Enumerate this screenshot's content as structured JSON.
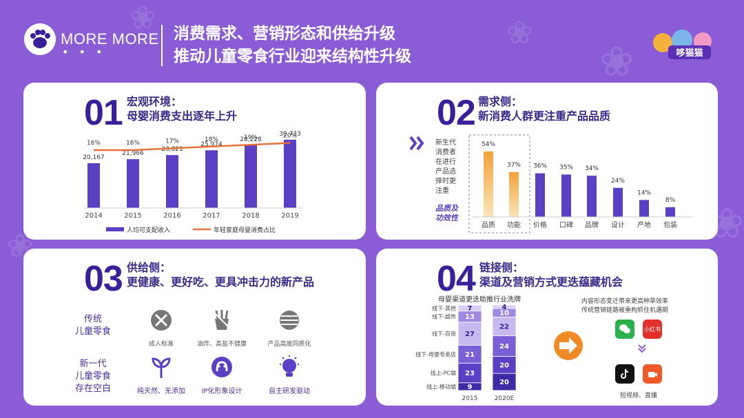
{
  "header": {
    "brand": "MORE MORE",
    "brand_dots": "• • •",
    "title_line1": "消费需求、营销形态和供给升级",
    "title_line2": "推动儿童零食行业迎来结构性升级",
    "mascot_text": "哆猫猫"
  },
  "card1": {
    "num": "01",
    "title_line1": "宏观环境：",
    "title_line2": "母婴消费支出逐年上升",
    "legend_bar": "人均可支配收入",
    "legend_line": "年轻家庭母婴消费占比"
  },
  "card2": {
    "num": "02",
    "title_line1": "需求侧：",
    "title_line2": "新消费人群更注重产品品质",
    "side_text": [
      "新生代",
      "消费者",
      "在进行",
      "产品选",
      "择时更",
      "注重"
    ],
    "side_emph": [
      "品质及",
      "功效性"
    ]
  },
  "card3": {
    "num": "03",
    "title_line1": "供给侧：",
    "title_line2": "更健康、更好吃、更具冲击力的新产品",
    "row1_label": [
      "传统",
      "儿童零食"
    ],
    "row2_label": [
      "新一代",
      "儿童零食",
      "存在空白"
    ],
    "row1_caps": [
      "成人标准",
      "油炸、高盐不健康",
      "产品高度同质化"
    ],
    "row2_caps": [
      "纯天然、无添加",
      "IP化形象设计",
      "自主研发驱动"
    ]
  },
  "card4": {
    "num": "04",
    "title_line1": "链接侧：",
    "title_line2": "渠道及营销方式更迭蕴藏机会",
    "right_line1": "内容形态变迁带来更高种草效率",
    "right_line2": "传统营销链路被重构抓住机遇期",
    "app_xhs": "小红书",
    "bottom_caption": "短视频、直播"
  },
  "colors": {
    "background": "#8a5cd6",
    "card": "#ffffff",
    "bar_purple": "#5b3fc4",
    "line_orange": "#e8703a",
    "highlight_orange": "#f2a23a",
    "dark_title": "#3a1f9a",
    "arrow_orange": "#f08a24"
  },
  "chart_data": [
    {
      "type": "bar",
      "name": "macro",
      "categories": [
        "2014",
        "2015",
        "2016",
        "2017",
        "2018",
        "2019"
      ],
      "series": [
        {
          "name": "人均可支配收入",
          "values": [
            20167,
            21966,
            23821,
            25974,
            28228,
            30733
          ],
          "labels": [
            "20,167",
            "21,966",
            "23,821",
            "25,974",
            "28,228",
            "30,733"
          ]
        },
        {
          "name": "年轻家庭母婴消费占比",
          "type": "line",
          "values": [
            16,
            16,
            17,
            18,
            19,
            20
          ],
          "labels": [
            "16%",
            "16%",
            "17%",
            "18%",
            "19%",
            "20%"
          ]
        }
      ]
    },
    {
      "type": "bar",
      "name": "demand",
      "categories": [
        "品质",
        "功能",
        "价格",
        "口碑",
        "品牌",
        "设计",
        "产地",
        "包装"
      ],
      "values": [
        54,
        37,
        36,
        35,
        34,
        24,
        14,
        8
      ],
      "labels": [
        "54%",
        "37%",
        "36%",
        "35%",
        "34%",
        "24%",
        "14%",
        "8%"
      ],
      "highlighted": [
        "品质",
        "功能"
      ]
    },
    {
      "type": "bar",
      "name": "channels",
      "title": "母婴渠道更迭助推行业洗牌",
      "categories": [
        "2015",
        "2020E"
      ],
      "segments": [
        "线上-移动端",
        "线上-PC端",
        "线下-母婴专卖店",
        "线下-百货",
        "线下-超市",
        "线下-其他"
      ],
      "series": [
        {
          "name": "线上-移动端",
          "values": [
            9,
            20
          ]
        },
        {
          "name": "线上-PC端",
          "values": [
            23,
            20
          ]
        },
        {
          "name": "线下-母婴专卖店",
          "values": [
            21,
            24
          ]
        },
        {
          "name": "线下-百货",
          "values": [
            27,
            22
          ]
        },
        {
          "name": "线下-超市",
          "values": [
            13,
            10
          ]
        },
        {
          "name": "线下-其他",
          "values": [
            7,
            4
          ]
        }
      ]
    }
  ]
}
